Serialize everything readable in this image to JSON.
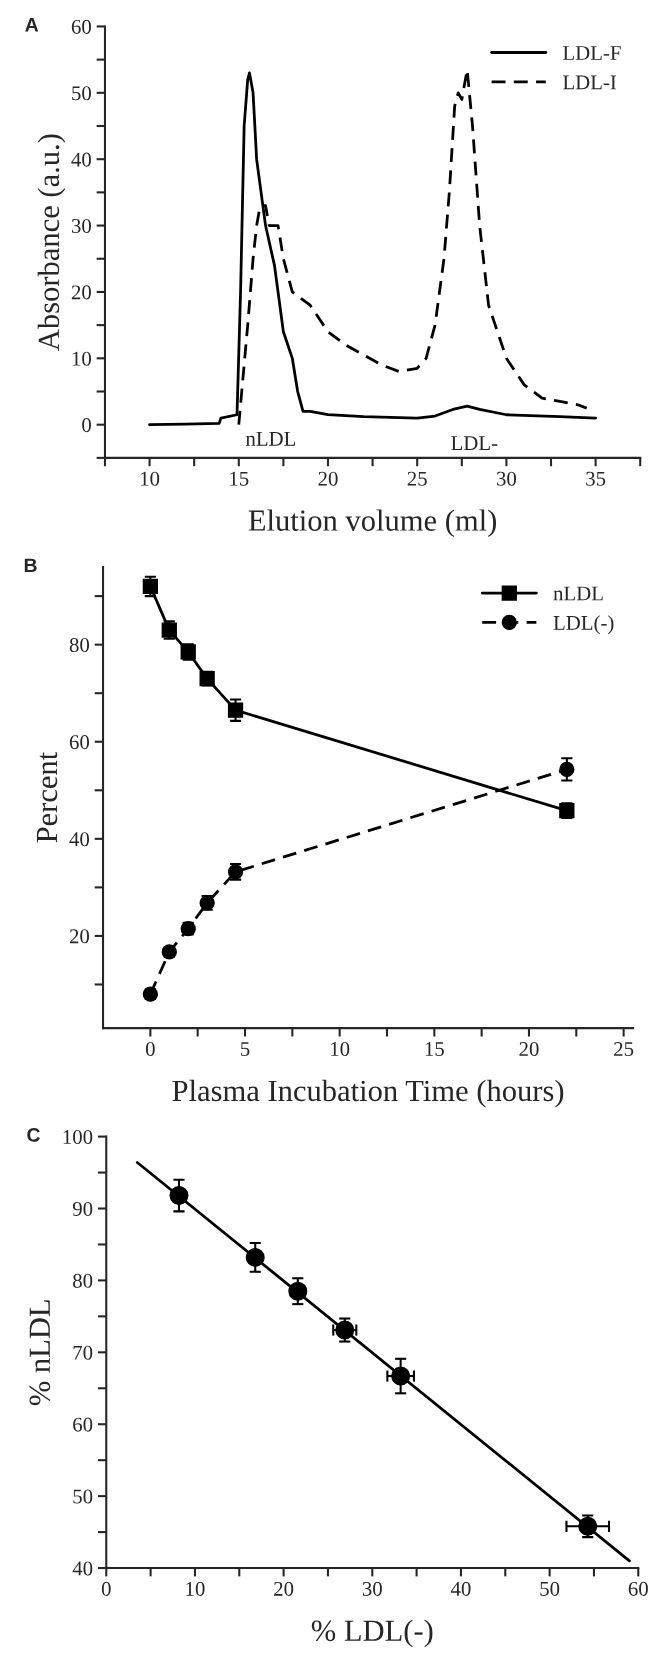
{
  "chart_data": [
    {
      "type": "line",
      "title": "A",
      "xlabel": "Elution volume (ml)",
      "ylabel": "Absorbance (a.u.)",
      "xlim": [
        7.5,
        37.5
      ],
      "ylim": [
        -5,
        60
      ],
      "xticks": [
        10,
        15,
        20,
        25,
        30,
        35,
        {
          "value": 7.5,
          "label": null
        },
        {
          "value": 12.5,
          "label": null
        },
        {
          "value": 17.5,
          "label": null
        },
        {
          "value": 22.5,
          "label": null
        },
        {
          "value": 27.5,
          "label": null
        },
        {
          "value": 32.5,
          "label": null
        },
        {
          "value": 37.5,
          "label": null
        }
      ],
      "yticks": [
        0,
        10,
        20,
        30,
        40,
        50,
        60,
        {
          "value": -5,
          "label": null
        },
        {
          "value": 5,
          "label": null
        },
        {
          "value": 15,
          "label": null
        },
        {
          "value": 25,
          "label": null
        },
        {
          "value": 35,
          "label": null
        },
        {
          "value": 45,
          "label": null
        },
        {
          "value": 55,
          "label": null
        }
      ],
      "grid": false,
      "legend": "top right",
      "series": [
        {
          "name": "LDL-F",
          "color": "#000000",
          "line_style": "solid",
          "marker": "none",
          "x": [
            10,
            12,
            13.9,
            14.0,
            14.9,
            15.1,
            15.3,
            15.5,
            15.6,
            15.8,
            16.0,
            16.5,
            17.0,
            17.5,
            18.0,
            18.3,
            18.6,
            19,
            20,
            22,
            25,
            26,
            27,
            27.8,
            28.5,
            30,
            33,
            35
          ],
          "values": [
            0,
            0.1,
            0.2,
            1,
            1.5,
            20,
            45,
            52,
            53,
            50,
            40,
            30,
            24,
            14,
            10,
            5,
            2,
            2,
            1.5,
            1.2,
            1,
            1.3,
            2.3,
            2.8,
            2.3,
            1.5,
            1.2,
            1
          ]
        },
        {
          "name": "LDL-I",
          "color": "#000000",
          "line_style": "dashed",
          "marker": "none",
          "x": [
            15.0,
            15.5,
            15.8,
            16.0,
            16.2,
            16.5,
            16.7,
            17.2,
            17.5,
            18,
            19,
            20,
            21,
            22,
            23,
            24,
            25,
            25.5,
            26,
            26.5,
            26.8,
            27.1,
            27.3,
            27.5,
            27.8,
            28.1,
            28.5,
            29,
            29.5,
            30,
            31,
            32,
            33,
            34,
            34.5
          ],
          "values": [
            0,
            15,
            25,
            30,
            33,
            33,
            30,
            30,
            25,
            20,
            18,
            14,
            12,
            10.5,
            9,
            8,
            8.5,
            10,
            15,
            25,
            35,
            48,
            50,
            49,
            53.5,
            45,
            30,
            18,
            14,
            10,
            6,
            4,
            3.5,
            3,
            2.5
          ]
        }
      ],
      "annotations": [
        "nLDL",
        "LDL-"
      ]
    },
    {
      "type": "line",
      "title": "B",
      "xlabel": "Plasma Incubation Time (hours)",
      "ylabel": "Percent",
      "xlim": [
        -2.5,
        25.5
      ],
      "ylim": [
        1,
        96
      ],
      "xticks": [
        0,
        5,
        10,
        15,
        20,
        25,
        {
          "value": 2.5,
          "label": null
        },
        {
          "value": 7.5,
          "label": null
        },
        {
          "value": 12.5,
          "label": null
        },
        {
          "value": 17.5,
          "label": null
        },
        {
          "value": 22.5,
          "label": null
        }
      ],
      "yticks": [
        20,
        40,
        60,
        80,
        {
          "value": 10,
          "label": null
        },
        {
          "value": 30,
          "label": null
        },
        {
          "value": 50,
          "label": null
        },
        {
          "value": 70,
          "label": null
        },
        {
          "value": 90,
          "label": null
        }
      ],
      "grid": false,
      "legend": "top right",
      "series": [
        {
          "name": "nLDL",
          "color": "#000000",
          "line_style": "solid",
          "marker": "square",
          "x": [
            0,
            1,
            2,
            3,
            4.5,
            22
          ],
          "values": [
            92,
            83,
            78.5,
            73,
            66.5,
            45.8
          ],
          "errors": [
            2,
            1.8,
            1.6,
            1.4,
            2.2,
            1.5
          ]
        },
        {
          "name": "LDL(-)",
          "color": "#000000",
          "line_style": "dashed",
          "marker": "circle",
          "x": [
            0,
            1,
            2,
            3,
            4.5,
            22
          ],
          "values": [
            8,
            16.7,
            21.5,
            26.8,
            33.2,
            54.3
          ],
          "errors": [
            1,
            1,
            1.2,
            1.4,
            1.6,
            2.3
          ]
        }
      ]
    },
    {
      "type": "scatter",
      "title": "C",
      "xlabel": "% LDL(-)",
      "ylabel": "% nLDL",
      "xlim": [
        0,
        60
      ],
      "ylim": [
        40,
        100
      ],
      "xticks": [
        0,
        10,
        20,
        30,
        40,
        50,
        60,
        {
          "value": 5,
          "label": null
        },
        {
          "value": 15,
          "label": null
        },
        {
          "value": 25,
          "label": null
        },
        {
          "value": 35,
          "label": null
        },
        {
          "value": 45,
          "label": null
        },
        {
          "value": 55,
          "label": null
        }
      ],
      "yticks": [
        40,
        50,
        60,
        70,
        80,
        90,
        100,
        {
          "value": 45,
          "label": null
        },
        {
          "value": 55,
          "label": null
        },
        {
          "value": 65,
          "label": null
        },
        {
          "value": 75,
          "label": null
        },
        {
          "value": 85,
          "label": null
        },
        {
          "value": 95,
          "label": null
        }
      ],
      "grid": false,
      "series": [
        {
          "type": "scatter",
          "color": "#000000",
          "marker": "circle",
          "x": [
            8.2,
            16.8,
            21.6,
            26.9,
            33.2,
            54.3
          ],
          "values": [
            91.8,
            83.2,
            78.5,
            73.1,
            66.7,
            45.8
          ],
          "errors": [
            2.2,
            2.0,
            1.8,
            1.6,
            2.4,
            1.5
          ],
          "xerrors": [
            null,
            null,
            0.8,
            1.3,
            1.5,
            2.4
          ]
        },
        {
          "type": "line",
          "color": "#000000",
          "line_style": "solid",
          "marker": "none",
          "x": [
            3.5,
            59
          ],
          "values": [
            96.4,
            41
          ]
        }
      ]
    }
  ]
}
